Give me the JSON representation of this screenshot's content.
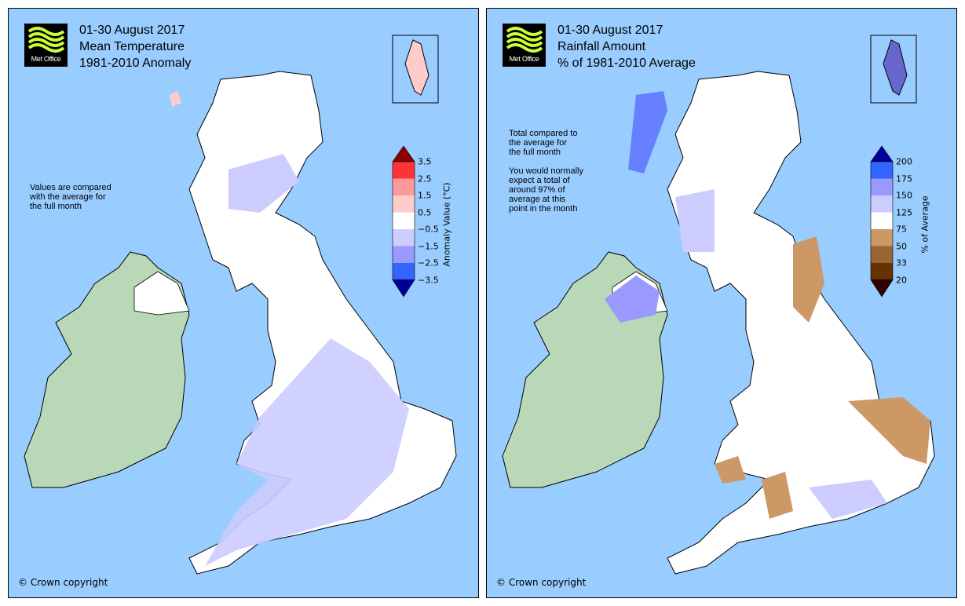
{
  "panels": [
    {
      "logo_text": "Met Office",
      "title_lines": [
        "01-30 August 2017",
        "Mean Temperature",
        "1981-2010 Anomaly"
      ],
      "note": "Values are compared\nwith the average for\nthe full month",
      "copyright": "© Crown copyright",
      "colorbar": {
        "axis_label": "Anomaly Value (°C)",
        "ticks": [
          "3.5",
          "2.5",
          "1.5",
          "0.5",
          "−0.5",
          "−1.5",
          "−2.5",
          "−3.5"
        ],
        "colors": [
          "#8b0000",
          "#ff3333",
          "#ff9999",
          "#ffcccc",
          "#ffffff",
          "#ccccff",
          "#9999ff",
          "#3366ff",
          "#000099"
        ]
      },
      "land_color": "#ffffff",
      "patch_color": "#ccccff",
      "ireland_color": "#b8d8b8"
    },
    {
      "logo_text": "Met Office",
      "title_lines": [
        "01-30 August 2017",
        "Rainfall Amount",
        "% of 1981-2010 Average"
      ],
      "note": "Total compared to\nthe average for\nthe full month\n\nYou would normally\nexpect a total of\naround 97% of\naverage at this\npoint in the month",
      "copyright": "© Crown copyright",
      "colorbar": {
        "axis_label": "% of Average",
        "ticks": [
          "200",
          "175",
          "150",
          "125",
          "75",
          "50",
          "33",
          "20"
        ],
        "colors": [
          "#000099",
          "#3366ff",
          "#9999ff",
          "#ccccff",
          "#ffffff",
          "#cc9966",
          "#996633",
          "#663300",
          "#330000"
        ]
      },
      "land_color": "#ffffff",
      "patch_color": "#cc9966",
      "ireland_color": "#b8d8b8"
    }
  ]
}
